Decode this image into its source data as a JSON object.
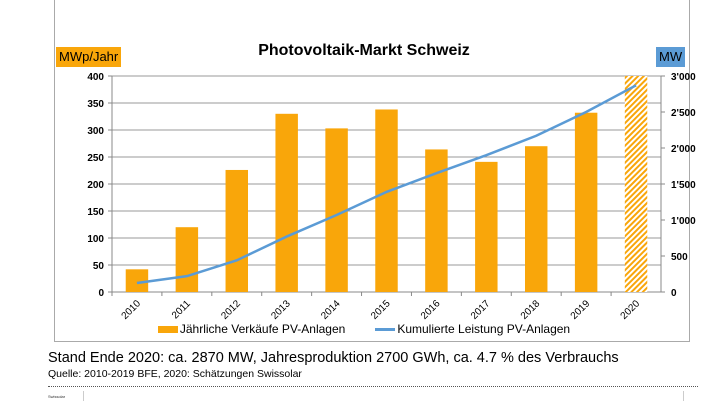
{
  "chart_data": {
    "type": "bar+line",
    "title": "Photovoltaik-Markt Schweiz",
    "ylabel": "MWp/Jahr",
    "y2label": "MW",
    "categories": [
      "2010",
      "2011",
      "2012",
      "2013",
      "2014",
      "2015",
      "2016",
      "2017",
      "2018",
      "2019",
      "2020"
    ],
    "ylim": [
      0,
      400
    ],
    "yticks": [
      "0",
      "50",
      "100",
      "150",
      "200",
      "250",
      "300",
      "350",
      "400"
    ],
    "y2lim": [
      0,
      3000
    ],
    "y2ticks": [
      "0",
      "500",
      "1'000",
      "1'500",
      "2'000",
      "2'500",
      "3'000"
    ],
    "grid": true,
    "legend_position": "bottom",
    "series": [
      {
        "name": "Jährliche Verkäufe PV-Anlagen",
        "type": "bar",
        "axis": "left",
        "color": "#f9a60a",
        "values": [
          42,
          120,
          226,
          330,
          303,
          338,
          264,
          241,
          270,
          332,
          400
        ],
        "hatched": [
          false,
          false,
          false,
          false,
          false,
          false,
          false,
          false,
          false,
          false,
          true
        ]
      },
      {
        "name": "Kumulierte Leistung PV-Anlagen",
        "type": "line",
        "axis": "right",
        "color": "#5b9bd5",
        "values": [
          125,
          220,
          440,
          770,
          1070,
          1390,
          1650,
          1900,
          2170,
          2500,
          2870
        ]
      }
    ]
  },
  "footer": {
    "summary": "Stand Ende 2020: ca. 2870 MW, Jahresproduktion 2700 GWh, ca. 4.7 % des Verbrauchs",
    "source": "Quelle: 2010-2019 BFE, 2020: Schätzungen Swissolar",
    "brand": "Swissolar"
  }
}
